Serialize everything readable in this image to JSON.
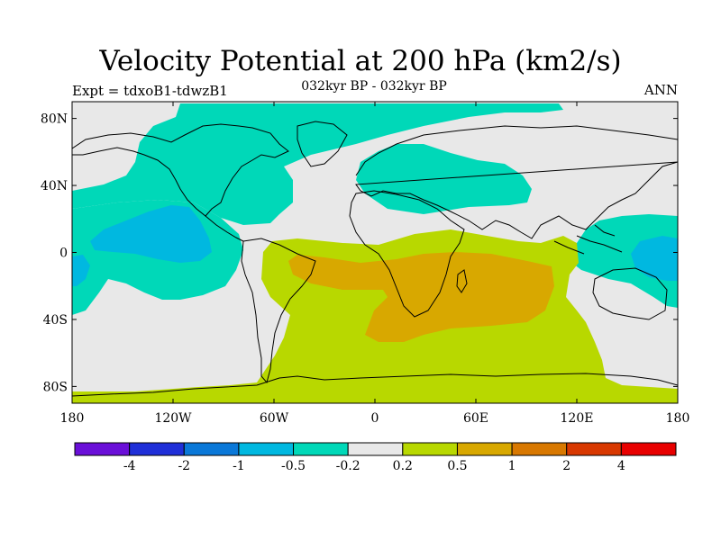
{
  "title": "Velocity Potential at 200 hPa (km2/s)",
  "subtitle": "032kyr BP - 032kyr BP",
  "left_label": "Expt = tdxoB1-tdwzB1",
  "right_label": "ANN",
  "colors": {
    "land_outline": "#000000",
    "background_field": "#e8e8e8"
  },
  "map_data": {
    "projection": "equirectangular",
    "lon_range": [
      -180,
      180
    ],
    "lat_range": [
      -90,
      90
    ],
    "x_ticks": [
      {
        "lon": -180,
        "label": "180"
      },
      {
        "lon": -120,
        "label": "120W"
      },
      {
        "lon": -60,
        "label": "60W"
      },
      {
        "lon": 0,
        "label": "0"
      },
      {
        "lon": 60,
        "label": "60E"
      },
      {
        "lon": 120,
        "label": "120E"
      },
      {
        "lon": 180,
        "label": "180"
      }
    ],
    "y_ticks": [
      {
        "lat": 80,
        "label": "80N"
      },
      {
        "lat": 40,
        "label": "40N"
      },
      {
        "lat": 0,
        "label": "0"
      },
      {
        "lat": -40,
        "label": "40S"
      },
      {
        "lat": -80,
        "label": "80S"
      }
    ]
  },
  "colorbar": {
    "colors": [
      "#6a0fd8",
      "#1f2fd8",
      "#0a78d8",
      "#00b8e0",
      "#00d8b8",
      "#e8e8e8",
      "#b8d800",
      "#d8a800",
      "#d87800",
      "#d83800",
      "#e80000"
    ],
    "labels": [
      "-4",
      "-2",
      "-1",
      "-0.5",
      "-0.2",
      "0.2",
      "0.5",
      "1",
      "2",
      "4"
    ]
  }
}
